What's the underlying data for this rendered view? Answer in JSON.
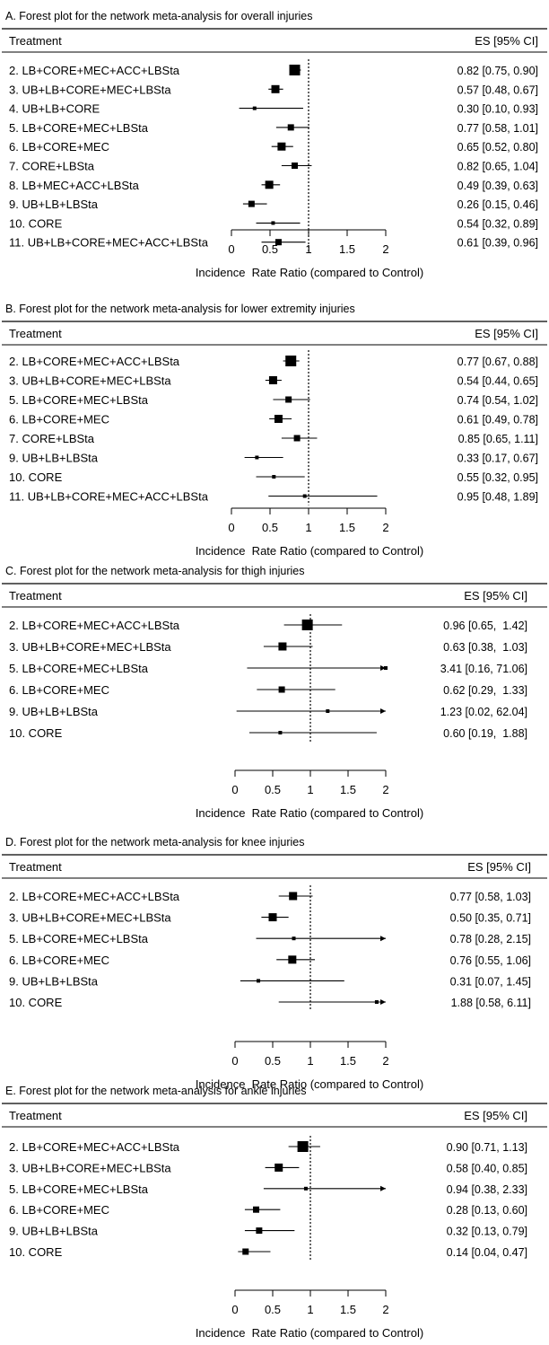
{
  "chart_data": [
    {
      "type": "forest",
      "panel": "A",
      "title": "A. Forest plot for the network meta-analysis for overall injuries",
      "column_left": "Treatment",
      "column_right": "ES [95% CI]",
      "xlabel": "Incidence  Rate Ratio (compared to Control)",
      "xticks": [
        "0",
        "0.5",
        "1",
        "1.5",
        "2"
      ],
      "xlim": [
        0,
        2
      ],
      "reference_line": 1,
      "rows": [
        {
          "label": "2. LB+CORE+MEC+ACC+LBSta",
          "es": 0.82,
          "lo": 0.75,
          "hi": 0.9,
          "text": "0.82 [0.75, 0.90]",
          "weight": 3
        },
        {
          "label": "3. UB+LB+CORE+MEC+LBSta",
          "es": 0.57,
          "lo": 0.48,
          "hi": 0.67,
          "text": "0.57 [0.48, 0.67]",
          "weight": 2
        },
        {
          "label": "4. UB+LB+CORE",
          "es": 0.3,
          "lo": 0.1,
          "hi": 0.93,
          "text": "0.30 [0.10, 0.93]",
          "weight": 0
        },
        {
          "label": "5. LB+CORE+MEC+LBSta",
          "es": 0.77,
          "lo": 0.58,
          "hi": 1.01,
          "text": "0.77 [0.58, 1.01]",
          "weight": 1
        },
        {
          "label": "6. LB+CORE+MEC",
          "es": 0.65,
          "lo": 0.52,
          "hi": 0.8,
          "text": "0.65 [0.52, 0.80]",
          "weight": 2
        },
        {
          "label": "7. CORE+LBSta",
          "es": 0.82,
          "lo": 0.65,
          "hi": 1.04,
          "text": "0.82 [0.65, 1.04]",
          "weight": 1
        },
        {
          "label": "8. LB+MEC+ACC+LBSta",
          "es": 0.49,
          "lo": 0.39,
          "hi": 0.63,
          "text": "0.49 [0.39, 0.63]",
          "weight": 2
        },
        {
          "label": "9. UB+LB+LBSta",
          "es": 0.26,
          "lo": 0.15,
          "hi": 0.46,
          "text": "0.26 [0.15, 0.46]",
          "weight": 1
        },
        {
          "label": "10. CORE",
          "es": 0.54,
          "lo": 0.32,
          "hi": 0.89,
          "text": "0.54 [0.32, 0.89]",
          "weight": 0
        },
        {
          "label": "11. UB+LB+CORE+MEC+ACC+LBSta",
          "es": 0.61,
          "lo": 0.39,
          "hi": 0.96,
          "text": "0.61 [0.39, 0.96]",
          "weight": 1
        }
      ]
    },
    {
      "type": "forest",
      "panel": "B",
      "title": "B. Forest plot for the network meta-analysis for lower extremity injuries",
      "column_left": "Treatment",
      "column_right": "ES [95% CI]",
      "xlabel": "Incidence  Rate Ratio (compared to Control)",
      "xticks": [
        "0",
        "0.5",
        "1",
        "1.5",
        "2"
      ],
      "xlim": [
        0,
        2
      ],
      "reference_line": 1,
      "rows": [
        {
          "label": "2. LB+CORE+MEC+ACC+LBSta",
          "es": 0.77,
          "lo": 0.67,
          "hi": 0.88,
          "text": "0.77 [0.67, 0.88]",
          "weight": 3
        },
        {
          "label": "3. UB+LB+CORE+MEC+LBSta",
          "es": 0.54,
          "lo": 0.44,
          "hi": 0.65,
          "text": "0.54 [0.44, 0.65]",
          "weight": 2
        },
        {
          "label": "5. LB+CORE+MEC+LBSta",
          "es": 0.74,
          "lo": 0.54,
          "hi": 1.02,
          "text": "0.74 [0.54, 1.02]",
          "weight": 1
        },
        {
          "label": "6. LB+CORE+MEC",
          "es": 0.61,
          "lo": 0.49,
          "hi": 0.78,
          "text": "0.61 [0.49, 0.78]",
          "weight": 2
        },
        {
          "label": "7. CORE+LBSta",
          "es": 0.85,
          "lo": 0.65,
          "hi": 1.11,
          "text": "0.85 [0.65, 1.11]",
          "weight": 1
        },
        {
          "label": "9. UB+LB+LBSta",
          "es": 0.33,
          "lo": 0.17,
          "hi": 0.67,
          "text": "0.33 [0.17, 0.67]",
          "weight": 0
        },
        {
          "label": "10. CORE",
          "es": 0.55,
          "lo": 0.32,
          "hi": 0.95,
          "text": "0.55 [0.32, 0.95]",
          "weight": 0
        },
        {
          "label": "11. UB+LB+CORE+MEC+ACC+LBSta",
          "es": 0.95,
          "lo": 0.48,
          "hi": 1.89,
          "text": "0.95 [0.48, 1.89]",
          "weight": 0
        }
      ]
    },
    {
      "type": "forest",
      "panel": "C",
      "title": "C. Forest plot for the network meta-analysis for thigh injuries",
      "column_left": "Treatment",
      "column_right": "ES [95% CI]",
      "xlabel": "Incidence  Rate Ratio (compared to Control)",
      "xticks": [
        "0",
        "0.5",
        "1",
        "1.5",
        "2"
      ],
      "xlim": [
        0,
        2
      ],
      "reference_line": 1,
      "rows": [
        {
          "label": "2. LB+CORE+MEC+ACC+LBSta",
          "es": 0.96,
          "lo": 0.65,
          "hi": 1.42,
          "text": "0.96 [0.65,  1.42]",
          "weight": 3
        },
        {
          "label": "3. UB+LB+CORE+MEC+LBSta",
          "es": 0.63,
          "lo": 0.38,
          "hi": 1.03,
          "text": "0.63 [0.38,  1.03]",
          "weight": 2
        },
        {
          "label": "5. LB+CORE+MEC+LBSta",
          "es": 3.41,
          "lo": 0.16,
          "hi": 71.06,
          "text": "3.41 [0.16, 71.06]",
          "weight": 0
        },
        {
          "label": "6. LB+CORE+MEC",
          "es": 0.62,
          "lo": 0.29,
          "hi": 1.33,
          "text": "0.62 [0.29,  1.33]",
          "weight": 1
        },
        {
          "label": "9. UB+LB+LBSta",
          "es": 1.23,
          "lo": 0.02,
          "hi": 62.04,
          "text": "1.23 [0.02, 62.04]",
          "weight": 0
        },
        {
          "label": "10. CORE",
          "es": 0.6,
          "lo": 0.19,
          "hi": 1.88,
          "text": "0.60 [0.19,  1.88]",
          "weight": 0
        }
      ]
    },
    {
      "type": "forest",
      "panel": "D",
      "title": "D. Forest plot for the network meta-analysis for knee injuries",
      "column_left": "Treatment",
      "column_right": "ES [95% CI]",
      "xlabel": "Incidence  Rate Ratio (compared to Control)",
      "xticks": [
        "0",
        "0.5",
        "1",
        "1.5",
        "2"
      ],
      "xlim": [
        0,
        2
      ],
      "reference_line": 1,
      "rows": [
        {
          "label": "2. LB+CORE+MEC+ACC+LBSta",
          "es": 0.77,
          "lo": 0.58,
          "hi": 1.03,
          "text": "0.77 [0.58, 1.03]",
          "weight": 2
        },
        {
          "label": "3. UB+LB+CORE+MEC+LBSta",
          "es": 0.5,
          "lo": 0.35,
          "hi": 0.71,
          "text": "0.50 [0.35, 0.71]",
          "weight": 2
        },
        {
          "label": "5. LB+CORE+MEC+LBSta",
          "es": 0.78,
          "lo": 0.28,
          "hi": 2.15,
          "text": "0.78 [0.28, 2.15]",
          "weight": 0
        },
        {
          "label": "6. LB+CORE+MEC",
          "es": 0.76,
          "lo": 0.55,
          "hi": 1.06,
          "text": "0.76 [0.55, 1.06]",
          "weight": 2
        },
        {
          "label": "9. UB+LB+LBSta",
          "es": 0.31,
          "lo": 0.07,
          "hi": 1.45,
          "text": "0.31 [0.07, 1.45]",
          "weight": 0
        },
        {
          "label": "10. CORE",
          "es": 1.88,
          "lo": 0.58,
          "hi": 6.11,
          "text": "1.88 [0.58, 6.11]",
          "weight": 0
        }
      ]
    },
    {
      "type": "forest",
      "panel": "E",
      "title": "E. Forest plot for the network meta-analysis for ankle injuries",
      "column_left": "Treatment",
      "column_right": "ES [95% CI]",
      "xlabel": "Incidence  Rate Ratio (compared to Control)",
      "xticks": [
        "0",
        "0.5",
        "1",
        "1.5",
        "2"
      ],
      "xlim": [
        0,
        2
      ],
      "reference_line": 1,
      "rows": [
        {
          "label": "2. LB+CORE+MEC+ACC+LBSta",
          "es": 0.9,
          "lo": 0.71,
          "hi": 1.13,
          "text": "0.90 [0.71, 1.13]",
          "weight": 3
        },
        {
          "label": "3. UB+LB+CORE+MEC+LBSta",
          "es": 0.58,
          "lo": 0.4,
          "hi": 0.85,
          "text": "0.58 [0.40, 0.85]",
          "weight": 2
        },
        {
          "label": "5. LB+CORE+MEC+LBSta",
          "es": 0.94,
          "lo": 0.38,
          "hi": 2.33,
          "text": "0.94 [0.38, 2.33]",
          "weight": 0
        },
        {
          "label": "6. LB+CORE+MEC",
          "es": 0.28,
          "lo": 0.13,
          "hi": 0.6,
          "text": "0.28 [0.13, 0.60]",
          "weight": 1
        },
        {
          "label": "9. UB+LB+LBSta",
          "es": 0.32,
          "lo": 0.13,
          "hi": 0.79,
          "text": "0.32 [0.13, 0.79]",
          "weight": 1
        },
        {
          "label": "10. CORE",
          "es": 0.14,
          "lo": 0.04,
          "hi": 0.47,
          "text": "0.14 [0.04, 0.47]",
          "weight": 1
        }
      ]
    }
  ]
}
